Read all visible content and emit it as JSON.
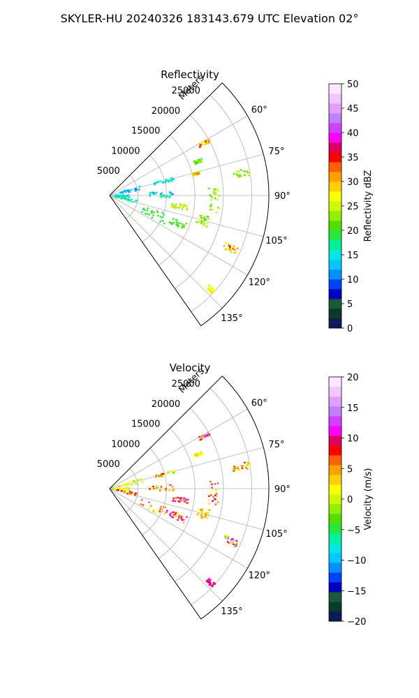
{
  "figure": {
    "suptitle": "SKYLER-HU  20240326  183143.679 UTC Elevation 02°"
  },
  "chart_data": [
    {
      "type": "scatter",
      "subtype": "polar-sector-ppi",
      "title": "Reflectivity",
      "radial_label": "Meters",
      "radial_ticks": [
        5000,
        10000,
        15000,
        20000,
        25000
      ],
      "radial_tick_labels": [
        "5000",
        "10000",
        "15000",
        "20000",
        "25000"
      ],
      "rmax": 28000,
      "theta_range_deg": [
        45,
        145
      ],
      "angular_ticks_deg": [
        60,
        75,
        90,
        105,
        120,
        135
      ],
      "angular_tick_labels": [
        "60°",
        "75°",
        "90°",
        "105°",
        "120°",
        "135°"
      ],
      "grid": true,
      "colorbar": {
        "label": "Reflectivity dBZ",
        "vmin": 0,
        "vmax": 50,
        "ticks": [
          0,
          5,
          10,
          15,
          20,
          25,
          30,
          35,
          40,
          45,
          50
        ],
        "tick_labels": [
          "0",
          "5",
          "10",
          "15",
          "20",
          "25",
          "30",
          "35",
          "40",
          "45",
          "50"
        ],
        "colors": [
          "#0a1a5a",
          "#0b3a2a",
          "#1a5a3a",
          "#0000c0",
          "#0040ff",
          "#0090ff",
          "#00c8ff",
          "#00e8e0",
          "#00f0a0",
          "#20e840",
          "#50e000",
          "#90f000",
          "#d0f800",
          "#ffff00",
          "#ffd000",
          "#ffa000",
          "#ff6000",
          "#ff0000",
          "#e00060",
          "#ff00ff",
          "#d040ff",
          "#c080ff",
          "#e0a0ff",
          "#f0c8ff",
          "#ffe8ff"
        ]
      },
      "clusters": [
        {
          "theta": [
            72,
            80
          ],
          "r": [
            1500,
            6000
          ],
          "values": [
            10,
            14
          ]
        },
        {
          "theta": [
            88,
            96
          ],
          "r": [
            500,
            3500
          ],
          "values": [
            12,
            16
          ]
        },
        {
          "theta": [
            98,
            106
          ],
          "r": [
            1000,
            5000
          ],
          "values": [
            14,
            19
          ]
        },
        {
          "theta": [
            74,
            77
          ],
          "r": [
            8000,
            12000
          ],
          "values": [
            13,
            19
          ]
        },
        {
          "theta": [
            86,
            92
          ],
          "r": [
            7000,
            11500
          ],
          "values": [
            11,
            19
          ]
        },
        {
          "theta": [
            108,
            118
          ],
          "r": [
            6000,
            11000
          ],
          "values": [
            17,
            22
          ]
        },
        {
          "theta": [
            110,
            115
          ],
          "r": [
            11500,
            14500
          ],
          "values": [
            18,
            24
          ]
        },
        {
          "theta": [
            60,
            62
          ],
          "r": [
            18000,
            20000
          ],
          "values": [
            20,
            35
          ]
        },
        {
          "theta": [
            68,
            70
          ],
          "r": [
            16000,
            17500
          ],
          "values": [
            19,
            23
          ]
        },
        {
          "theta": [
            75,
            77
          ],
          "r": [
            15000,
            16500
          ],
          "values": [
            23,
            35
          ]
        },
        {
          "theta": [
            86,
            100
          ],
          "r": [
            17500,
            19500
          ],
          "values": [
            20,
            26
          ]
        },
        {
          "theta": [
            102,
            108
          ],
          "r": [
            16000,
            18000
          ],
          "values": [
            20,
            26
          ]
        },
        {
          "theta": [
            112,
            115
          ],
          "r": [
            22000,
            24500
          ],
          "values": [
            23,
            36
          ]
        },
        {
          "theta": [
            79,
            82
          ],
          "r": [
            22000,
            25000
          ],
          "values": [
            21,
            26
          ]
        },
        {
          "theta": [
            132,
            134
          ],
          "r": [
            23500,
            25000
          ],
          "values": [
            24,
            28
          ]
        },
        {
          "theta": [
            97,
            101
          ],
          "r": [
            11000,
            14000
          ],
          "values": [
            22,
            26
          ]
        }
      ]
    },
    {
      "type": "scatter",
      "subtype": "polar-sector-ppi",
      "title": "Velocity",
      "radial_label": "Meters",
      "radial_ticks": [
        5000,
        10000,
        15000,
        20000,
        25000
      ],
      "radial_tick_labels": [
        "5000",
        "10000",
        "15000",
        "20000",
        "25000"
      ],
      "rmax": 28000,
      "theta_range_deg": [
        45,
        145
      ],
      "angular_ticks_deg": [
        60,
        75,
        90,
        105,
        120,
        135
      ],
      "angular_tick_labels": [
        "60°",
        "75°",
        "90°",
        "105°",
        "120°",
        "135°"
      ],
      "grid": true,
      "colorbar": {
        "label": "Velocity (m/s)",
        "vmin": -20,
        "vmax": 20,
        "ticks": [
          -20,
          -15,
          -10,
          -5,
          0,
          5,
          10,
          15,
          20
        ],
        "tick_labels": [
          "−20",
          "−15",
          "−10",
          "−5",
          "0",
          "5",
          "10",
          "15",
          "20"
        ],
        "colors": [
          "#0a1a5a",
          "#0b3a2a",
          "#1a5a3a",
          "#0000c0",
          "#0040ff",
          "#0090ff",
          "#00c8ff",
          "#00e8e0",
          "#00f0a0",
          "#20e840",
          "#50e000",
          "#90f000",
          "#d0f800",
          "#ffff00",
          "#ffd000",
          "#ffa000",
          "#ff6000",
          "#ff0000",
          "#e00060",
          "#ff00ff",
          "#d040ff",
          "#c080ff",
          "#e0a0ff",
          "#f0c8ff",
          "#ffe8ff"
        ]
      },
      "clusters": [
        {
          "theta": [
            72,
            80
          ],
          "r": [
            1500,
            6000
          ],
          "values": [
            -1,
            4
          ]
        },
        {
          "theta": [
            88,
            96
          ],
          "r": [
            500,
            3500
          ],
          "values": [
            -2,
            3
          ]
        },
        {
          "theta": [
            98,
            106
          ],
          "r": [
            1000,
            5000
          ],
          "values": [
            0,
            12
          ]
        },
        {
          "theta": [
            74,
            77
          ],
          "r": [
            8000,
            12000
          ],
          "values": [
            -3,
            9
          ]
        },
        {
          "theta": [
            86,
            92
          ],
          "r": [
            7000,
            11500
          ],
          "values": [
            -2,
            11
          ]
        },
        {
          "theta": [
            108,
            118
          ],
          "r": [
            6000,
            11000
          ],
          "values": [
            0,
            14
          ]
        },
        {
          "theta": [
            110,
            115
          ],
          "r": [
            11500,
            14500
          ],
          "values": [
            2,
            14
          ]
        },
        {
          "theta": [
            60,
            62
          ],
          "r": [
            18000,
            20000
          ],
          "values": [
            -4,
            14
          ]
        },
        {
          "theta": [
            68,
            70
          ],
          "r": [
            16000,
            17500
          ],
          "values": [
            0,
            3
          ]
        },
        {
          "theta": [
            86,
            100
          ],
          "r": [
            17500,
            19500
          ],
          "values": [
            0,
            15
          ]
        },
        {
          "theta": [
            102,
            108
          ],
          "r": [
            16000,
            18000
          ],
          "values": [
            0,
            6
          ]
        },
        {
          "theta": [
            112,
            115
          ],
          "r": [
            22000,
            24500
          ],
          "values": [
            -5,
            16
          ]
        },
        {
          "theta": [
            79,
            82
          ],
          "r": [
            22000,
            25000
          ],
          "values": [
            -2,
            10
          ]
        },
        {
          "theta": [
            132,
            134
          ],
          "r": [
            23500,
            25000
          ],
          "values": [
            8,
            12
          ]
        },
        {
          "theta": [
            97,
            101
          ],
          "r": [
            11000,
            14000
          ],
          "values": [
            2,
            14
          ]
        }
      ]
    }
  ]
}
